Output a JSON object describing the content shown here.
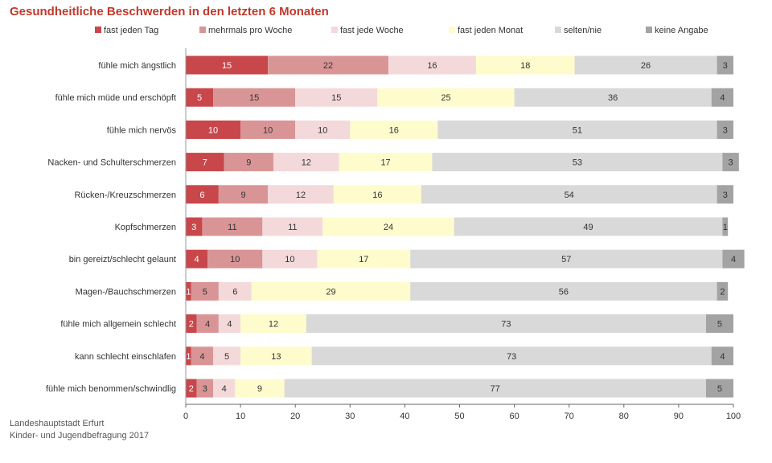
{
  "title": "Gesundheitliche Beschwerden in den letzten 6 Monaten",
  "source": [
    "Landeshauptstadt Erfurt",
    "Kinder- und Jugendbefragung 2017"
  ],
  "chart_data": {
    "type": "bar",
    "orientation": "horizontal",
    "stacked": true,
    "title": "Gesundheitliche Beschwerden in den letzten 6 Monaten",
    "xlim": [
      0,
      100
    ],
    "xticks": [
      0,
      10,
      20,
      30,
      40,
      50,
      60,
      70,
      80,
      90,
      100
    ],
    "grid": false,
    "legend_position": "top",
    "categories": [
      "fühle mich ängstlich",
      "fühle mich müde und erschöpft",
      "fühle mich nervös",
      "Nacken- und Schulterschmerzen",
      "Rücken-/Kreuzschmerzen",
      "Kopfschmerzen",
      "bin gereizt/schlecht gelaunt",
      "Magen-/Bauchschmerzen",
      "fühle mich allgemein schlecht",
      "kann schlecht einschlafen",
      "fühle mich benommen/schwindlig"
    ],
    "series": [
      {
        "name": "fast jeden Tag",
        "color": "#c8474b",
        "label_color": "#ffffff",
        "values": [
          15,
          5,
          10,
          7,
          6,
          3,
          4,
          1,
          2,
          1,
          2
        ]
      },
      {
        "name": "mehrmals pro Woche",
        "color": "#d99596",
        "label_color": "#333333",
        "values": [
          22,
          15,
          10,
          9,
          9,
          11,
          10,
          5,
          4,
          4,
          3
        ]
      },
      {
        "name": "fast jede Woche",
        "color": "#f4d9da",
        "label_color": "#333333",
        "values": [
          16,
          15,
          10,
          12,
          12,
          11,
          10,
          6,
          4,
          5,
          4
        ]
      },
      {
        "name": "fast jeden Monat",
        "color": "#fefccd",
        "label_color": "#333333",
        "values": [
          18,
          25,
          16,
          17,
          16,
          24,
          17,
          29,
          12,
          13,
          9
        ]
      },
      {
        "name": "selten/nie",
        "color": "#d9d9d9",
        "label_color": "#333333",
        "values": [
          26,
          36,
          51,
          53,
          54,
          49,
          57,
          56,
          73,
          73,
          77
        ]
      },
      {
        "name": "keine Angabe",
        "color": "#a3a3a3",
        "label_color": "#333333",
        "values": [
          3,
          4,
          3,
          3,
          3,
          1,
          4,
          2,
          5,
          4,
          5
        ]
      }
    ]
  }
}
